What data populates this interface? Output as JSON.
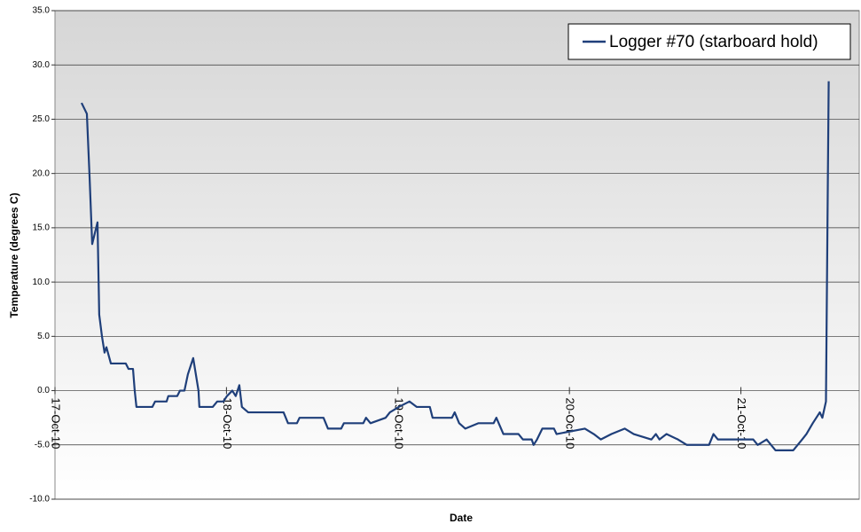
{
  "chart_data": {
    "type": "line",
    "x_label": "Date",
    "y_label": "Temperature (degrees C)",
    "xlim": [
      0,
      4.69
    ],
    "xticks": [
      {
        "value": 0,
        "label": "17-Oct-10"
      },
      {
        "value": 1,
        "label": "18-Oct-10"
      },
      {
        "value": 2,
        "label": "19-Oct-10"
      },
      {
        "value": 3,
        "label": "20-Oct-10"
      },
      {
        "value": 4,
        "label": "21-Oct-10"
      }
    ],
    "ylim": [
      -10,
      35
    ],
    "yticks": [
      {
        "value": -10,
        "label": "-10.0"
      },
      {
        "value": -5,
        "label": "-5.0"
      },
      {
        "value": 0,
        "label": "0.0"
      },
      {
        "value": 5,
        "label": "5.0"
      },
      {
        "value": 10,
        "label": "10.0"
      },
      {
        "value": 15,
        "label": "15.0"
      },
      {
        "value": 20,
        "label": "20.0"
      },
      {
        "value": 25,
        "label": "25.0"
      },
      {
        "value": 30,
        "label": "30.0"
      },
      {
        "value": 35,
        "label": "35.0"
      }
    ],
    "grid": true,
    "legend": "upper right",
    "x": [
      0.155,
      0.186,
      0.202,
      0.217,
      0.248,
      0.258,
      0.274,
      0.289,
      0.3,
      0.326,
      0.413,
      0.429,
      0.455,
      0.465,
      0.475,
      0.568,
      0.584,
      0.651,
      0.661,
      0.713,
      0.729,
      0.755,
      0.775,
      0.806,
      0.837,
      0.842,
      0.92,
      0.946,
      0.982,
      1.003,
      1.034,
      1.054,
      1.075,
      1.09,
      1.127,
      1.333,
      1.359,
      1.411,
      1.426,
      1.566,
      1.592,
      1.669,
      1.685,
      1.798,
      1.814,
      1.84,
      1.928,
      1.953,
      2.005,
      2.067,
      2.109,
      2.186,
      2.202,
      2.315,
      2.331,
      2.357,
      2.393,
      2.47,
      2.558,
      2.574,
      2.615,
      2.703,
      2.729,
      2.78,
      2.791,
      2.811,
      2.842,
      2.91,
      2.925,
      3.09,
      3.142,
      3.183,
      3.245,
      3.323,
      3.375,
      3.478,
      3.504,
      3.525,
      3.566,
      3.633,
      3.685,
      3.814,
      3.84,
      3.866,
      4.072,
      4.098,
      4.15,
      4.202,
      4.305,
      4.331,
      4.357,
      4.382,
      4.419,
      4.46,
      4.475,
      4.496,
      4.512
    ],
    "series": [
      {
        "name": "Logger #70 (starboard hold)",
        "color": "#1f3f7a",
        "values": [
          26.5,
          25.5,
          19.6,
          13.5,
          15.5,
          7,
          5,
          3.5,
          4,
          2.5,
          2.5,
          2,
          2,
          0,
          -1.5,
          -1.5,
          -1,
          -1,
          -0.5,
          -0.5,
          0,
          0,
          1.5,
          3,
          0,
          -1.5,
          -1.5,
          -1,
          -1,
          -0.5,
          0,
          -0.5,
          0.5,
          -1.5,
          -2,
          -2,
          -3,
          -3,
          -2.5,
          -2.5,
          -3.5,
          -3.5,
          -3,
          -3,
          -2.5,
          -3,
          -2.5,
          -2,
          -1.5,
          -1,
          -1.5,
          -1.5,
          -2.5,
          -2.5,
          -2,
          -3,
          -3.5,
          -3,
          -3,
          -2.5,
          -4,
          -4,
          -4.5,
          -4.5,
          -5,
          -4.5,
          -3.5,
          -3.5,
          -4,
          -3.5,
          -4,
          -4.5,
          -4,
          -3.5,
          -4,
          -4.5,
          -4,
          -4.5,
          -4,
          -4.5,
          -5,
          -5,
          -4,
          -4.5,
          -4.5,
          -5,
          -4.5,
          -5.5,
          -5.5,
          -5,
          -4.5,
          -4,
          -3,
          -2,
          -2.5,
          -1,
          28.5
        ]
      }
    ]
  }
}
